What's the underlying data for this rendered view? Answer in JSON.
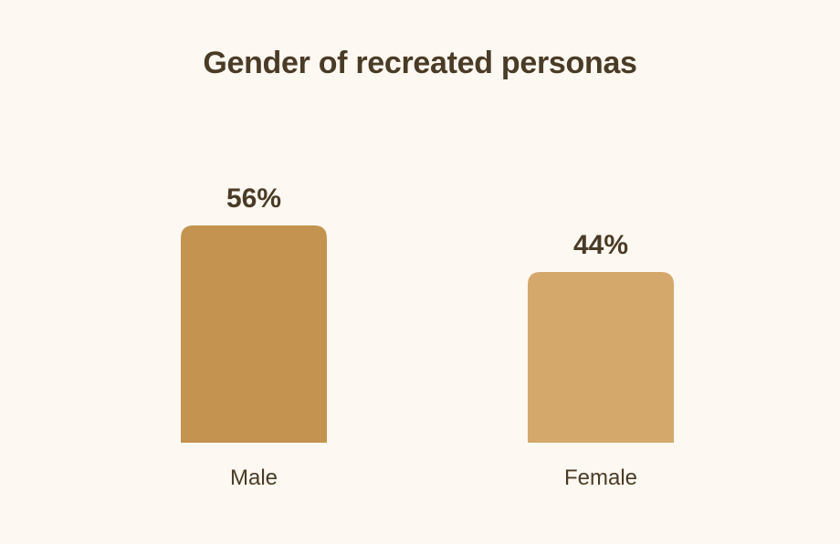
{
  "chart_data": {
    "type": "bar",
    "title": "Gender of recreated personas",
    "categories": [
      "Male",
      "Female"
    ],
    "values": [
      56,
      44
    ],
    "value_labels": [
      "56%",
      "44%"
    ],
    "colors": [
      "#c4934f",
      "#d4a86b"
    ],
    "xlabel": "",
    "ylabel": "",
    "grid": false,
    "legend": "none"
  },
  "colors": {
    "background": "#fdf8f1",
    "text": "#4a3b26"
  }
}
